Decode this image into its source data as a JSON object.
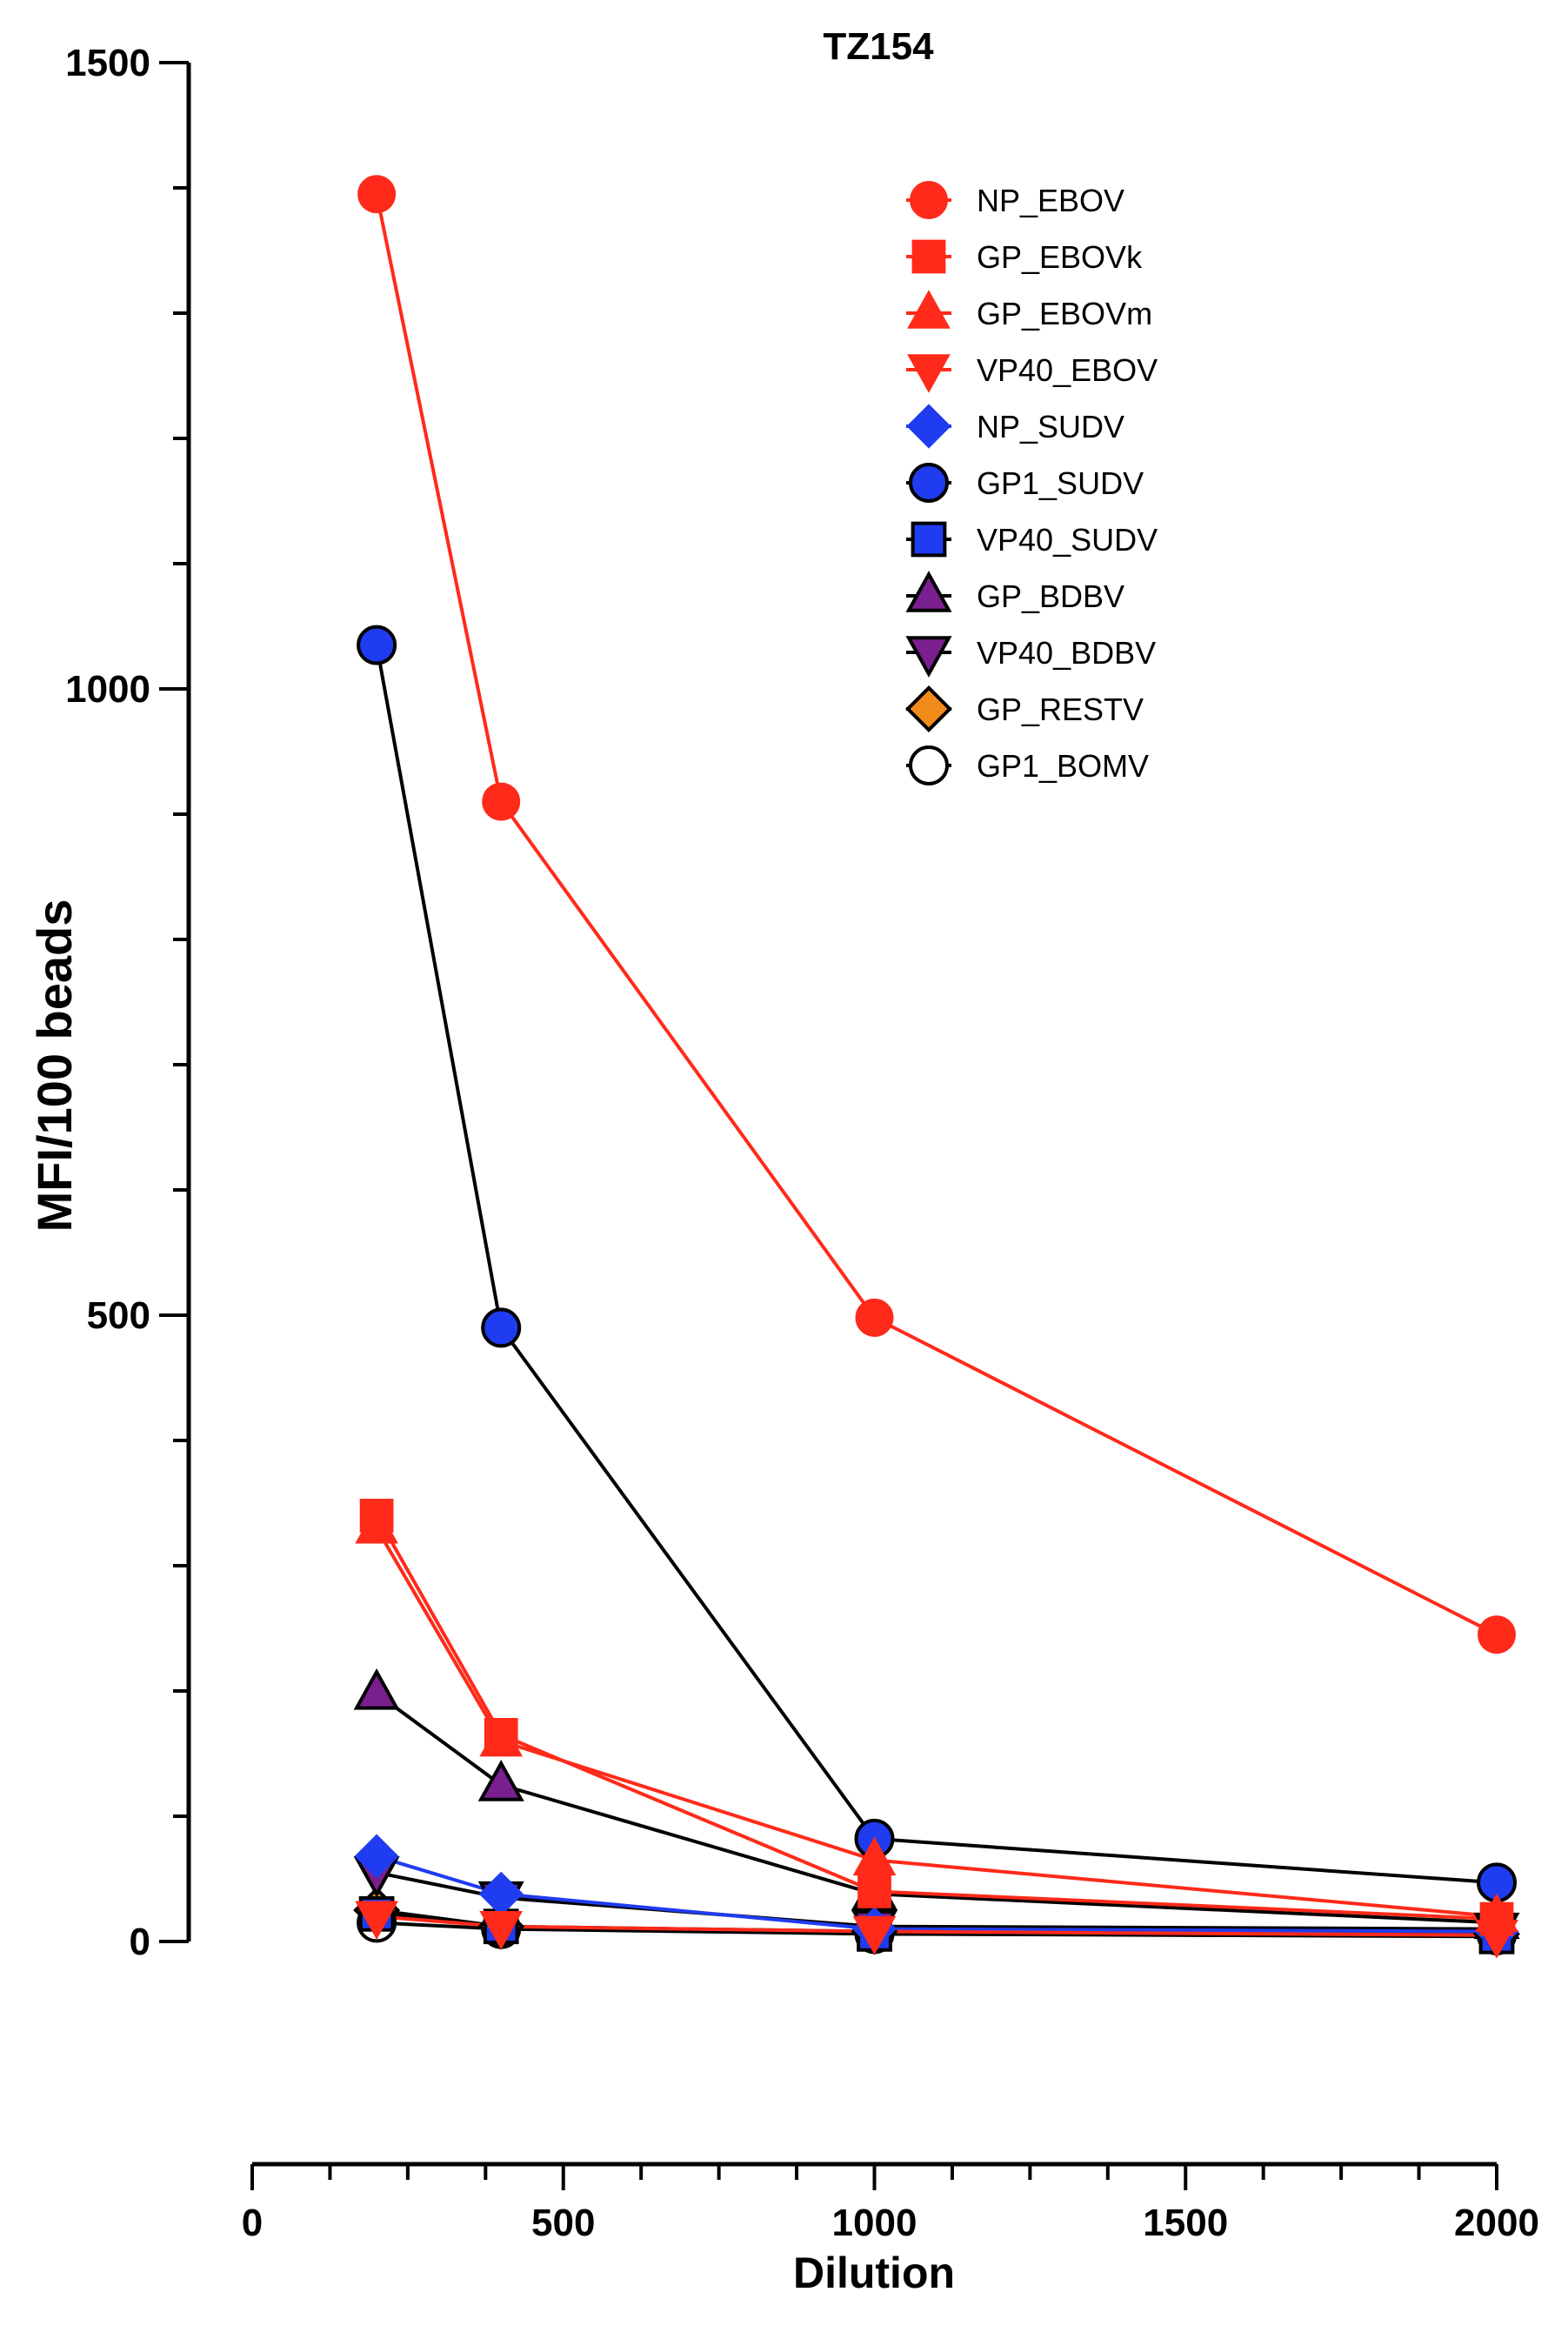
{
  "chart_data": {
    "type": "line",
    "title": "TZ154",
    "xlabel": "Dilution",
    "ylabel": "MFI/100 beads",
    "xlim": [
      0,
      2000
    ],
    "ylim": [
      0,
      1500
    ],
    "x_ticks": [
      "0",
      "500",
      "1000",
      "1500",
      "2000"
    ],
    "y_ticks": [
      "0",
      "500",
      "1000",
      "1500"
    ],
    "x": [
      200,
      400,
      1000,
      2000
    ],
    "legend_position": "top-right",
    "grid": false,
    "series": [
      {
        "name": "NP_EBOV",
        "values": [
          1395,
          910,
          498,
          245
        ],
        "marker": "circle",
        "fill": "#ff2a1a",
        "line": "#ff2a1a",
        "stroke": "#ff2a1a"
      },
      {
        "name": "GP_EBOVk",
        "values": [
          340,
          165,
          40,
          18
        ],
        "marker": "square",
        "fill": "#ff2a1a",
        "line": "#ff2a1a",
        "stroke": "#ff2a1a"
      },
      {
        "name": "GP_EBOVm",
        "values": [
          330,
          160,
          65,
          20
        ],
        "marker": "triangle-up",
        "fill": "#ff2a1a",
        "line": "#ff2a1a",
        "stroke": "#ff2a1a"
      },
      {
        "name": "VP40_EBOV",
        "values": [
          20,
          12,
          8,
          5
        ],
        "marker": "triangle-down",
        "fill": "#ff2a1a",
        "line": "#ff2a1a",
        "stroke": "#ff2a1a"
      },
      {
        "name": "NP_SUDV",
        "values": [
          68,
          38,
          10,
          8
        ],
        "marker": "diamond",
        "fill": "#1f3cf0",
        "line": "#1f3cf0",
        "stroke": "#1f3cf0"
      },
      {
        "name": "GP1_SUDV",
        "values": [
          1035,
          490,
          82,
          47
        ],
        "marker": "circle",
        "fill": "#1f3cf0",
        "line": "#000000",
        "stroke": "#000000"
      },
      {
        "name": "VP40_SUDV",
        "values": [
          22,
          12,
          6,
          4
        ],
        "marker": "square",
        "fill": "#1f3cf0",
        "line": "#000000",
        "stroke": "#000000"
      },
      {
        "name": "GP_BDBV",
        "values": [
          198,
          125,
          38,
          15
        ],
        "marker": "triangle-up",
        "fill": "#7a1f8f",
        "line": "#000000",
        "stroke": "#000000"
      },
      {
        "name": "VP40_BDBV",
        "values": [
          55,
          35,
          12,
          10
        ],
        "marker": "triangle-down",
        "fill": "#7a1f8f",
        "line": "#000000",
        "stroke": "#000000"
      },
      {
        "name": "GP_RESTV",
        "values": [
          25,
          12,
          8,
          6
        ],
        "marker": "diamond",
        "fill": "#f28a1a",
        "line": "#000000",
        "stroke": "#000000"
      },
      {
        "name": "GP1_BOMV",
        "values": [
          15,
          10,
          6,
          5
        ],
        "marker": "circle-open",
        "fill": "#ffffff",
        "line": "#000000",
        "stroke": "#000000"
      }
    ]
  }
}
